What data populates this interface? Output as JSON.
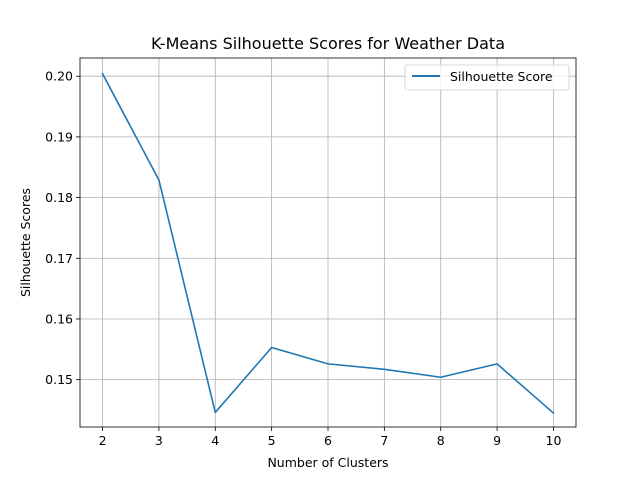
{
  "chart_data": {
    "type": "line",
    "title": "K-Means Silhouette Scores for Weather Data",
    "xlabel": "Number of Clusters",
    "ylabel": "Silhouette Scores",
    "x": [
      2,
      3,
      4,
      5,
      6,
      7,
      8,
      9,
      10
    ],
    "x_ticks": [
      "2",
      "3",
      "4",
      "5",
      "6",
      "7",
      "8",
      "9",
      "10"
    ],
    "y_ticks": [
      "0.15",
      "0.16",
      "0.17",
      "0.18",
      "0.19",
      "0.20"
    ],
    "xlim": [
      1.6,
      10.4
    ],
    "ylim": [
      0.1422,
      0.203
    ],
    "grid": true,
    "legend_position": "top-right",
    "series": [
      {
        "name": "Silhouette Score",
        "color": "#1f77b4",
        "values": [
          0.2004,
          0.1829,
          0.1446,
          0.1553,
          0.1526,
          0.1517,
          0.1504,
          0.1526,
          0.1445
        ]
      }
    ]
  }
}
